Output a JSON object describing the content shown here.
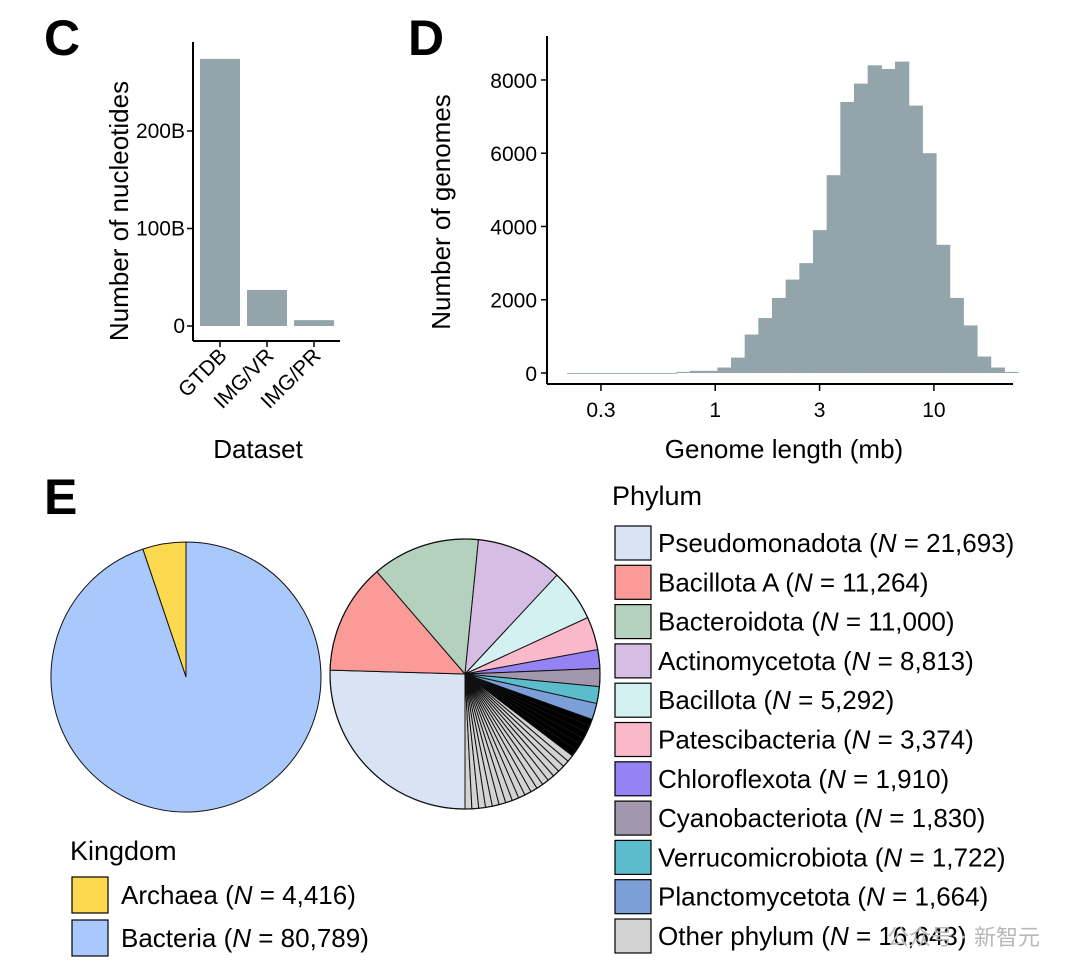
{
  "chart_data": [
    {
      "panel": "C",
      "type": "bar",
      "categories": [
        "GTDB",
        "IMG/VR",
        "IMG/PR"
      ],
      "values": [
        274,
        37,
        6
      ],
      "value_unit": "B",
      "ylabel": "Number of nucleotides",
      "xlabel": "Dataset",
      "yticks": [
        {
          "v": 0,
          "label": "0"
        },
        {
          "v": 100,
          "label": "100B"
        },
        {
          "v": 200,
          "label": "200B"
        }
      ],
      "ylim": [
        0,
        290
      ],
      "color": "#93a5ab",
      "grid": false
    },
    {
      "panel": "D",
      "type": "bar",
      "subtype": "histogram",
      "scale_x": "log",
      "xlabel": "Genome length (mb)",
      "ylabel": "Number of genomes",
      "xticks": [
        {
          "v": 0.3,
          "label": "0.3"
        },
        {
          "v": 1,
          "label": "1"
        },
        {
          "v": 3,
          "label": "3"
        },
        {
          "v": 10,
          "label": "10"
        }
      ],
      "yticks": [
        {
          "v": 0,
          "label": "0"
        },
        {
          "v": 2000,
          "label": "2000"
        },
        {
          "v": 4000,
          "label": "4000"
        },
        {
          "v": 6000,
          "label": "6000"
        },
        {
          "v": 8000,
          "label": "8000"
        }
      ],
      "xlim": [
        0.17,
        23
      ],
      "ylim": [
        -300,
        9200
      ],
      "bins_log10_start": -0.678,
      "bin_width_log10": 0.0625,
      "counts": [
        0,
        0,
        0,
        0,
        0,
        0,
        0,
        0,
        30,
        60,
        60,
        150,
        420,
        1050,
        1500,
        2050,
        2550,
        3000,
        3900,
        5400,
        7400,
        7900,
        8400,
        8300,
        8500,
        7300,
        6000,
        3500,
        2050,
        1300,
        450,
        150,
        30
      ],
      "color": "#93a5ab",
      "grid": false
    },
    {
      "panel": "E",
      "type": "pie",
      "name": "Kingdom",
      "legend_title": "Kingdom",
      "slices": [
        {
          "label": "Archaea (",
          "italic": "N",
          "rest": " = 4,416)",
          "value": 4416,
          "color": "#fcd94f"
        },
        {
          "label": "Bacteria (",
          "italic": "N",
          "rest": " = 80,789)",
          "value": 80789,
          "color": "#a9c8fb"
        }
      ]
    },
    {
      "panel": "E",
      "type": "pie",
      "name": "Phylum",
      "legend_title": "Phylum",
      "slices": [
        {
          "label": "Pseudomonadota (",
          "italic": "N",
          "rest": " = 21,693)",
          "value": 21693,
          "color": "#d8e3f4"
        },
        {
          "label": "Bacillota A (",
          "italic": "N",
          "rest": " = 11,264)",
          "value": 11264,
          "color": "#fa9b98"
        },
        {
          "label": "Bacteroidota (",
          "italic": "N",
          "rest": " = 11,000)",
          "value": 11000,
          "color": "#b4d1bd"
        },
        {
          "label": "Actinomycetota (",
          "italic": "N",
          "rest": " = 8,813)",
          "value": 8813,
          "color": "#d5bde3"
        },
        {
          "label": "Bacillota (",
          "italic": "N",
          "rest": " = 5,292)",
          "value": 5292,
          "color": "#d4f1f1"
        },
        {
          "label": "Patescibacteria (",
          "italic": "N",
          "rest": " = 3,374)",
          "value": 3374,
          "color": "#fab8cb"
        },
        {
          "label": "Chloroflexota (",
          "italic": "N",
          "rest": " = 1,910)",
          "value": 1910,
          "color": "#9683f3"
        },
        {
          "label": "Cyanobacteriota (",
          "italic": "N",
          "rest": " = 1,830)",
          "value": 1830,
          "color": "#a397ae"
        },
        {
          "label": "Verrucomicrobiota (",
          "italic": "N",
          "rest": " = 1,722)",
          "value": 1722,
          "color": "#5bbccc"
        },
        {
          "label": "Planctomycetota (",
          "italic": "N",
          "rest": " = 1,664)",
          "value": 1664,
          "color": "#7d9fd8"
        },
        {
          "label": "Other phylum (",
          "italic": "N",
          "rest": " = 16,643)",
          "value": 16643,
          "color": "#d3d3d3"
        }
      ],
      "other_subslices": 24
    }
  ],
  "panel_labels": {
    "c": "C",
    "d": "D",
    "e": "E"
  },
  "watermark": "公众号 · 新智元"
}
